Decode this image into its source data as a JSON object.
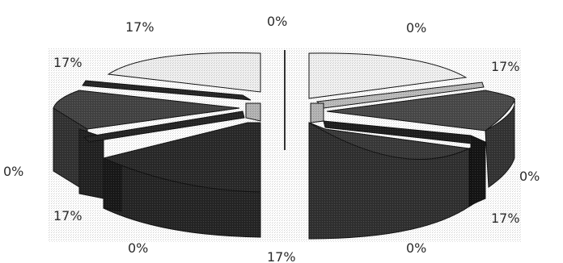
{
  "chart_data": {
    "type": "pie",
    "style": "3d-exploded",
    "slices": [
      {
        "value": 17,
        "label": "17%",
        "color": "#f2f2f2"
      },
      {
        "value": 0,
        "label": "0%",
        "color": "#bdbdbd"
      },
      {
        "value": 0,
        "label": "0%",
        "color": "#1e1e1e"
      },
      {
        "value": 17,
        "label": "17%",
        "color": "#4a4a4a"
      },
      {
        "value": 0,
        "label": "0%",
        "color": "#151515"
      },
      {
        "value": 17,
        "label": "17%",
        "color": "#3a3a3a"
      },
      {
        "value": 0,
        "label": "0%",
        "color": "#000000"
      },
      {
        "value": 17,
        "label": "17%",
        "color": "#2a2a2a"
      },
      {
        "value": 0,
        "label": "0%",
        "color": "#b5b5b5"
      },
      {
        "value": 17,
        "label": "17%",
        "color": "#444444"
      },
      {
        "value": 0,
        "label": "0%",
        "color": "#262626"
      },
      {
        "value": 17,
        "label": "17%",
        "color": "#f0f0f0"
      }
    ]
  }
}
